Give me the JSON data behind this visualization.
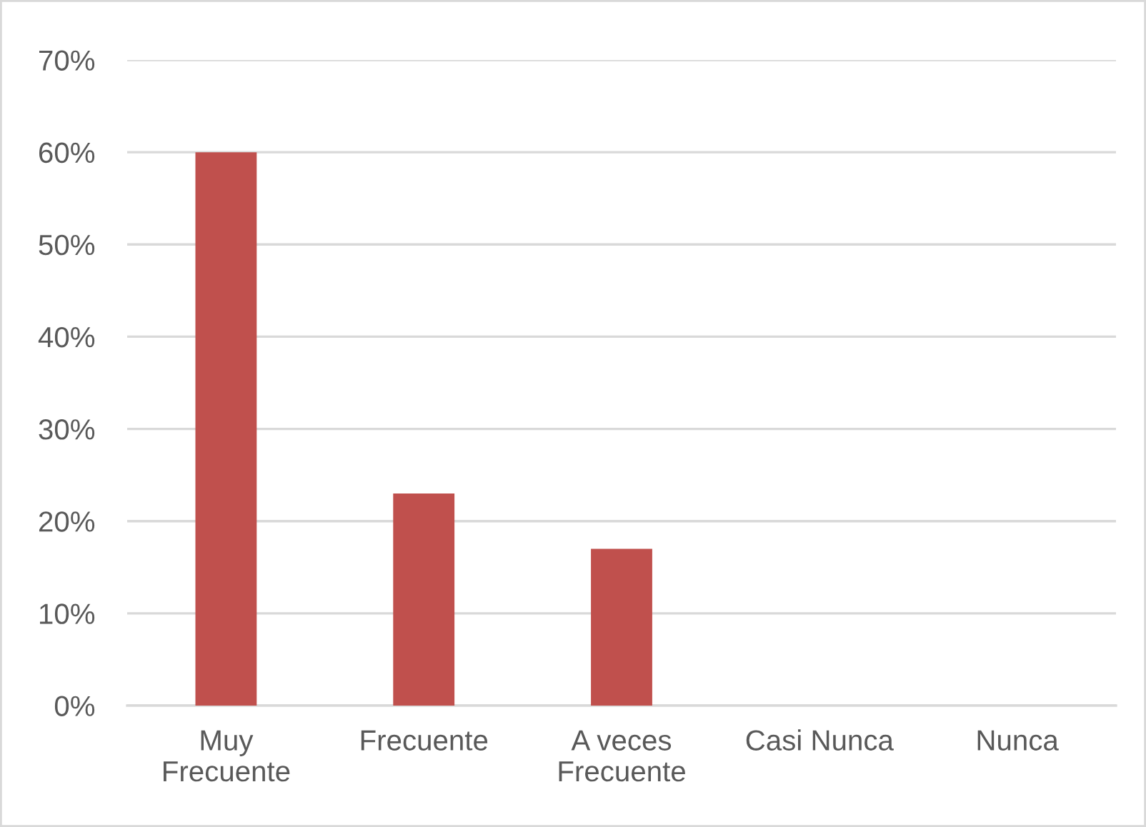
{
  "chart_data": {
    "type": "bar",
    "categories": [
      "Muy Frecuente",
      "Frecuente",
      "A veces Frecuente",
      "Casi Nunca",
      "Nunca"
    ],
    "values": [
      60,
      23,
      17,
      0,
      0
    ],
    "color": "#c0504d",
    "ylim": [
      0,
      70
    ],
    "yticks": [
      {
        "value": 0,
        "label": "0%"
      },
      {
        "value": 10,
        "label": "10%"
      },
      {
        "value": 20,
        "label": "20%"
      },
      {
        "value": 30,
        "label": "30%"
      },
      {
        "value": 40,
        "label": "40%"
      },
      {
        "value": 50,
        "label": "50%"
      },
      {
        "value": 60,
        "label": "60%"
      },
      {
        "value": 70,
        "label": "70%"
      }
    ],
    "grid": "y"
  }
}
